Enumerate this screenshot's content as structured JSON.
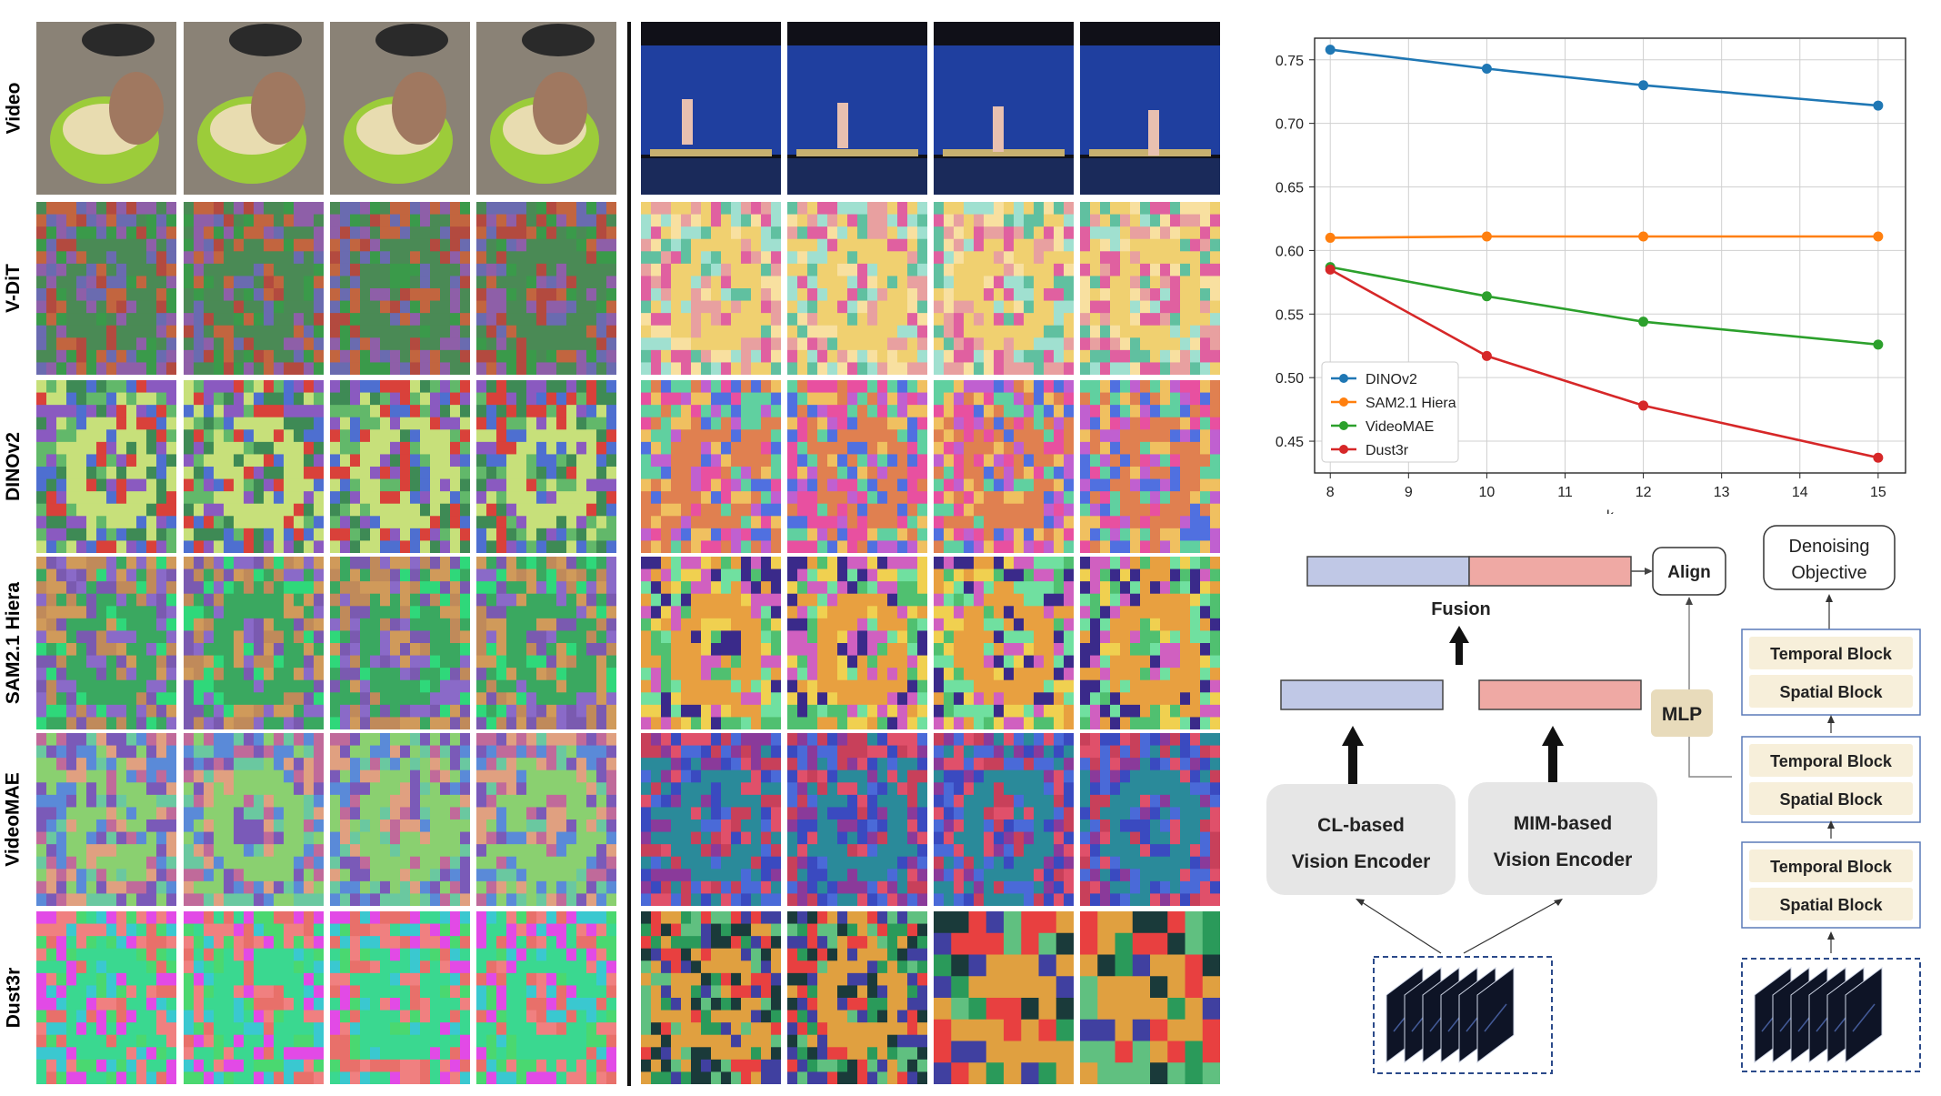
{
  "figure": {
    "rows": [
      {
        "label": "Video"
      },
      {
        "label": "V-DiT"
      },
      {
        "label": "DINOv2"
      },
      {
        "label": "SAM2.1 Hiera"
      },
      {
        "label": "VideoMAE"
      },
      {
        "label": "Dust3r"
      }
    ],
    "frame_count_per_video": 4,
    "videos": [
      "bowl-mixing",
      "gymnastics-beam"
    ]
  },
  "chart_data": {
    "type": "line",
    "x": [
      8,
      10,
      12,
      15
    ],
    "xlabel": "k",
    "ylabel": "",
    "xticks": [
      8,
      9,
      10,
      11,
      12,
      13,
      14,
      15
    ],
    "yticks": [
      "0.45",
      "0.50",
      "0.55",
      "0.60",
      "0.65",
      "0.70",
      "0.75"
    ],
    "xlim": [
      7.8,
      15.35
    ],
    "ylim": [
      0.425,
      0.767
    ],
    "grid": true,
    "legend_position": "bottom-left",
    "series": [
      {
        "name": "DINOv2",
        "color": "#1f77b4",
        "values": [
          0.758,
          0.743,
          0.73,
          0.714
        ]
      },
      {
        "name": "SAM2.1 Hiera",
        "color": "#ff7f0e",
        "values": [
          0.61,
          0.611,
          0.611,
          0.611
        ]
      },
      {
        "name": "VideoMAE",
        "color": "#2ca02c",
        "values": [
          0.587,
          0.564,
          0.544,
          0.526
        ]
      },
      {
        "name": "Dust3r",
        "color": "#d62728",
        "values": [
          0.585,
          0.517,
          0.478,
          0.437
        ]
      }
    ]
  },
  "diagram": {
    "fusion_label": "Fusion",
    "align_label": "Align",
    "mlp_label": "MLP",
    "denoising_label_line1": "Denoising",
    "denoising_label_line2": "Objective",
    "cl_encoder_line1": "CL-based",
    "cl_encoder_line2": "Vision Encoder",
    "mim_encoder_line1": "MIM-based",
    "mim_encoder_line2": "Vision Encoder",
    "temporal_block_label": "Temporal Block",
    "spatial_block_label": "Spatial Block",
    "colors": {
      "cl_feature": "#c0c8e6",
      "mim_feature": "#efa9a4",
      "mlp_fill": "#e8dbbb",
      "block_fill": "#f7efda",
      "encoder_fill": "#e6e6e6"
    }
  }
}
